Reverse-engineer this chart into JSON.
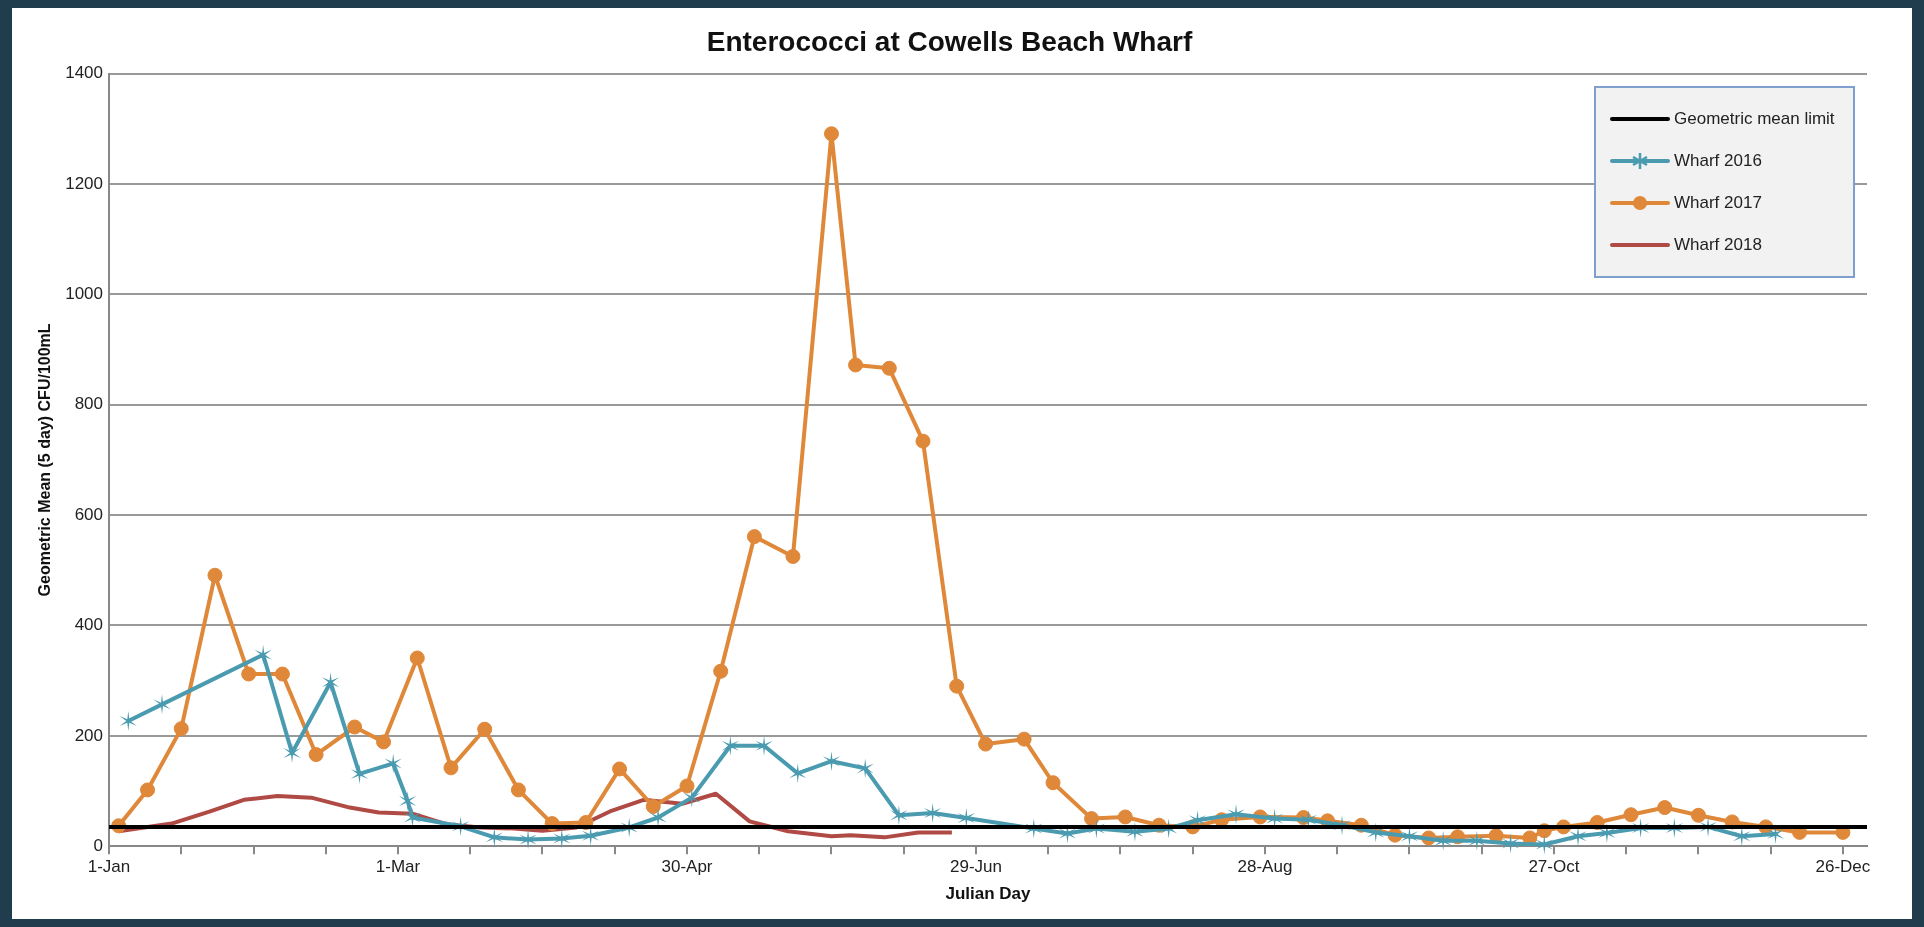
{
  "chart_data": {
    "type": "line",
    "title": "Enterococci at Cowells Beach Wharf",
    "xlabel": "Julian Day",
    "ylabel": "Geometric Mean (5 day) CFU/100mL",
    "xlim": [
      "--01-01",
      "--12-31"
    ],
    "xticks": [
      {
        "value": "--01-01",
        "label": "1-Jan"
      },
      {
        "value": "--01-16",
        "label": null
      },
      {
        "value": "--01-31",
        "label": null
      },
      {
        "value": "--02-15",
        "label": null
      },
      {
        "value": "--03-01",
        "label": "1-Mar"
      },
      {
        "value": "--03-16",
        "label": null
      },
      {
        "value": "--03-31",
        "label": null
      },
      {
        "value": "--04-15",
        "label": null
      },
      {
        "value": "--04-30",
        "label": "30-Apr"
      },
      {
        "value": "--05-15",
        "label": null
      },
      {
        "value": "--05-30",
        "label": null
      },
      {
        "value": "--06-14",
        "label": null
      },
      {
        "value": "--06-29",
        "label": "29-Jun"
      },
      {
        "value": "--07-14",
        "label": null
      },
      {
        "value": "--07-29",
        "label": null
      },
      {
        "value": "--08-13",
        "label": null
      },
      {
        "value": "--08-28",
        "label": "28-Aug"
      },
      {
        "value": "--09-12",
        "label": null
      },
      {
        "value": "--09-27",
        "label": null
      },
      {
        "value": "--10-12",
        "label": null
      },
      {
        "value": "--10-27",
        "label": "27-Oct"
      },
      {
        "value": "--11-11",
        "label": null
      },
      {
        "value": "--11-26",
        "label": null
      },
      {
        "value": "--12-11",
        "label": null
      },
      {
        "value": "--12-26",
        "label": "26-Dec"
      }
    ],
    "ylim": [
      0,
      1400
    ],
    "yticks": [
      0,
      200,
      400,
      600,
      800,
      1000,
      1200,
      1400
    ],
    "grid": "y",
    "legend": "top right",
    "series": [
      {
        "name": "Geometric mean limit",
        "color": "#000000",
        "marker": "none",
        "x": [
          "--01-01",
          "--12-31"
        ],
        "values": [
          35,
          35
        ]
      },
      {
        "name": "Wharf 2016",
        "color": "#4a9bb0",
        "marker": "cross",
        "x": [
          "--01-05",
          "--01-12",
          "--02-02",
          "--02-08",
          "--02-16",
          "--02-22",
          "--02-29",
          "--03-03",
          "--03-04",
          "--03-14",
          "--03-21",
          "--03-28",
          "--04-04",
          "--04-10",
          "--04-18",
          "--04-24",
          "--05-01",
          "--05-09",
          "--05-16",
          "--05-23",
          "--05-30",
          "--06-06",
          "--06-13",
          "--06-20",
          "--06-27",
          "--07-11",
          "--07-18",
          "--07-24",
          "--08-01",
          "--08-08",
          "--08-14",
          "--08-22",
          "--08-30",
          "--09-06",
          "--09-13",
          "--09-20",
          "--09-27",
          "--10-04",
          "--10-11",
          "--10-18",
          "--10-25",
          "--11-01",
          "--11-07",
          "--11-14",
          "--11-21",
          "--11-28",
          "--12-05",
          "--12-12"
        ],
        "values": [
          227,
          257,
          347,
          169,
          297,
          131,
          150,
          82,
          52,
          36,
          16,
          12,
          14,
          19,
          34,
          52,
          88,
          182,
          182,
          132,
          154,
          141,
          56,
          60,
          51,
          32,
          23,
          32,
          26,
          32,
          47,
          58,
          50,
          48,
          38,
          25,
          18,
          10,
          10,
          5,
          3,
          18,
          24,
          33,
          33,
          35,
          18,
          22
        ]
      },
      {
        "name": "Wharf 2017",
        "color": "#e0883a",
        "marker": "circle",
        "x": [
          "--01-03",
          "--01-09",
          "--01-16",
          "--01-23",
          "--01-30",
          "--02-06",
          "--02-13",
          "--02-21",
          "--02-27",
          "--03-05",
          "--03-12",
          "--03-19",
          "--03-26",
          "--04-02",
          "--04-09",
          "--04-16",
          "--04-23",
          "--04-30",
          "--05-07",
          "--05-14",
          "--05-22",
          "--05-30",
          "--06-04",
          "--06-11",
          "--06-18",
          "--06-25",
          "--07-01",
          "--07-09",
          "--07-15",
          "--07-23",
          "--07-30",
          "--08-06",
          "--08-13",
          "--08-19",
          "--08-27",
          "--09-05",
          "--09-10",
          "--09-17",
          "--09-24",
          "--10-01",
          "--10-07",
          "--10-15",
          "--10-22",
          "--10-25",
          "--10-29",
          "--11-05",
          "--11-12",
          "--11-19",
          "--11-26",
          "--12-03",
          "--12-10",
          "--12-17",
          "--12-26"
        ],
        "values": [
          37,
          102,
          213,
          491,
          312,
          312,
          166,
          216,
          189,
          341,
          142,
          212,
          102,
          41,
          43,
          140,
          72,
          109,
          317,
          561,
          525,
          1291,
          872,
          866,
          734,
          290,
          185,
          194,
          115,
          50,
          53,
          38,
          35,
          48,
          53,
          52,
          46,
          38,
          20,
          15,
          17,
          19,
          15,
          28,
          35,
          43,
          57,
          70,
          56,
          44,
          35,
          25,
          25
        ]
      },
      {
        "name": "Wharf 2018",
        "color": "#b04a45",
        "marker": "none",
        "x": [
          "--01-03",
          "--01-14",
          "--01-22",
          "--01-29",
          "--02-05",
          "--02-12",
          "--02-20",
          "--02-26",
          "--03-04",
          "--03-11",
          "--03-18",
          "--03-25",
          "--03-31",
          "--04-07",
          "--04-14",
          "--04-21",
          "--04-29",
          "--05-06",
          "--05-13",
          "--05-21",
          "--05-30",
          "--06-03",
          "--06-10",
          "--06-17",
          "--06-24"
        ],
        "values": [
          27,
          41,
          63,
          84,
          91,
          88,
          70,
          61,
          59,
          40,
          34,
          32,
          28,
          34,
          63,
          84,
          77,
          95,
          45,
          27,
          18,
          20,
          16,
          25,
          25
        ]
      }
    ]
  }
}
